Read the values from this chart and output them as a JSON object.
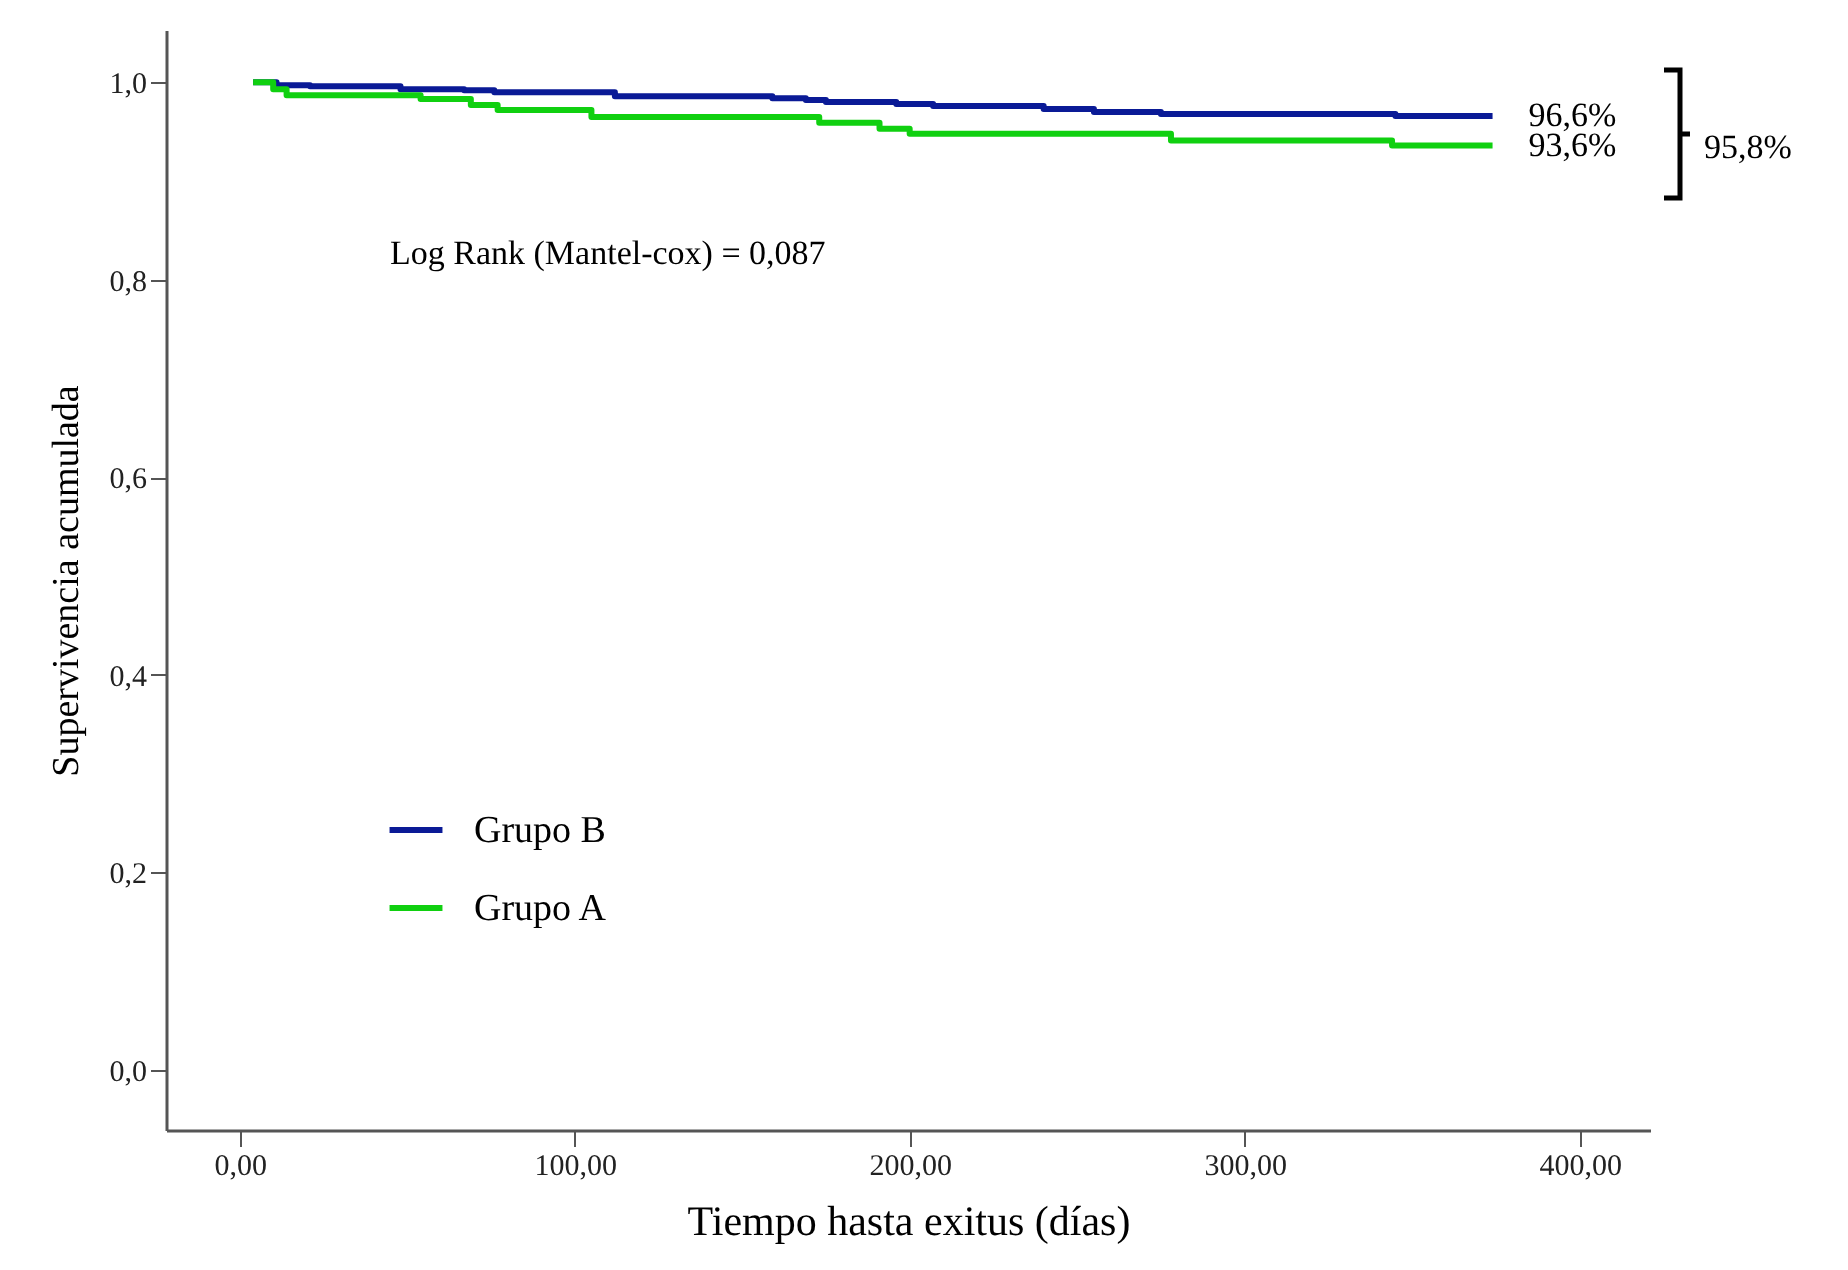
{
  "chart_data": {
    "type": "step",
    "xlabel": "Tiempo hasta exitus (días)",
    "ylabel": "Supervivencia acumulada",
    "xlim": [
      -22,
      421
    ],
    "ylim": [
      -0.061,
      1.053
    ],
    "xticks": [
      {
        "value": 0,
        "label": "0,00"
      },
      {
        "value": 100,
        "label": "100,00"
      },
      {
        "value": 200,
        "label": "200,00"
      },
      {
        "value": 300,
        "label": "300,00"
      },
      {
        "value": 400,
        "label": "400,00"
      }
    ],
    "yticks": [
      {
        "value": 0,
        "label": "0,0"
      },
      {
        "value": 0.2,
        "label": "0,2"
      },
      {
        "value": 0.4,
        "label": "0,4"
      },
      {
        "value": 0.6,
        "label": "0,6"
      },
      {
        "value": 0.8,
        "label": "0,8"
      },
      {
        "value": 1,
        "label": "1,0"
      }
    ],
    "series": [
      {
        "name": "Grupo B",
        "color": "#0a1a96",
        "x": [
          4,
          11,
          21,
          48,
          67,
          76,
          112,
          159,
          169,
          175,
          196,
          207,
          240,
          255,
          275,
          345,
          374
        ],
        "values": [
          1.0,
          0.997,
          0.996,
          0.993,
          0.992,
          0.99,
          0.986,
          0.984,
          0.982,
          0.98,
          0.978,
          0.976,
          0.973,
          0.97,
          0.968,
          0.966,
          0.966
        ]
      },
      {
        "name": "Grupo A",
        "color": "#10d010",
        "x": [
          4,
          10,
          14,
          54,
          69,
          77,
          105,
          173,
          191,
          200,
          278,
          344,
          374
        ],
        "values": [
          1.0,
          0.993,
          0.987,
          0.983,
          0.977,
          0.972,
          0.965,
          0.959,
          0.953,
          0.948,
          0.941,
          0.936,
          0.936
        ]
      }
    ],
    "legend": "bottom left",
    "grid": false,
    "annotations": [
      "Log Rank (Mantel-cox)  = 0,087",
      {
        "text": "96,6%",
        "x": 374,
        "y": 0.966
      },
      {
        "text": "93,6%",
        "x": 374,
        "y": 0.936
      },
      "95,8%"
    ]
  }
}
